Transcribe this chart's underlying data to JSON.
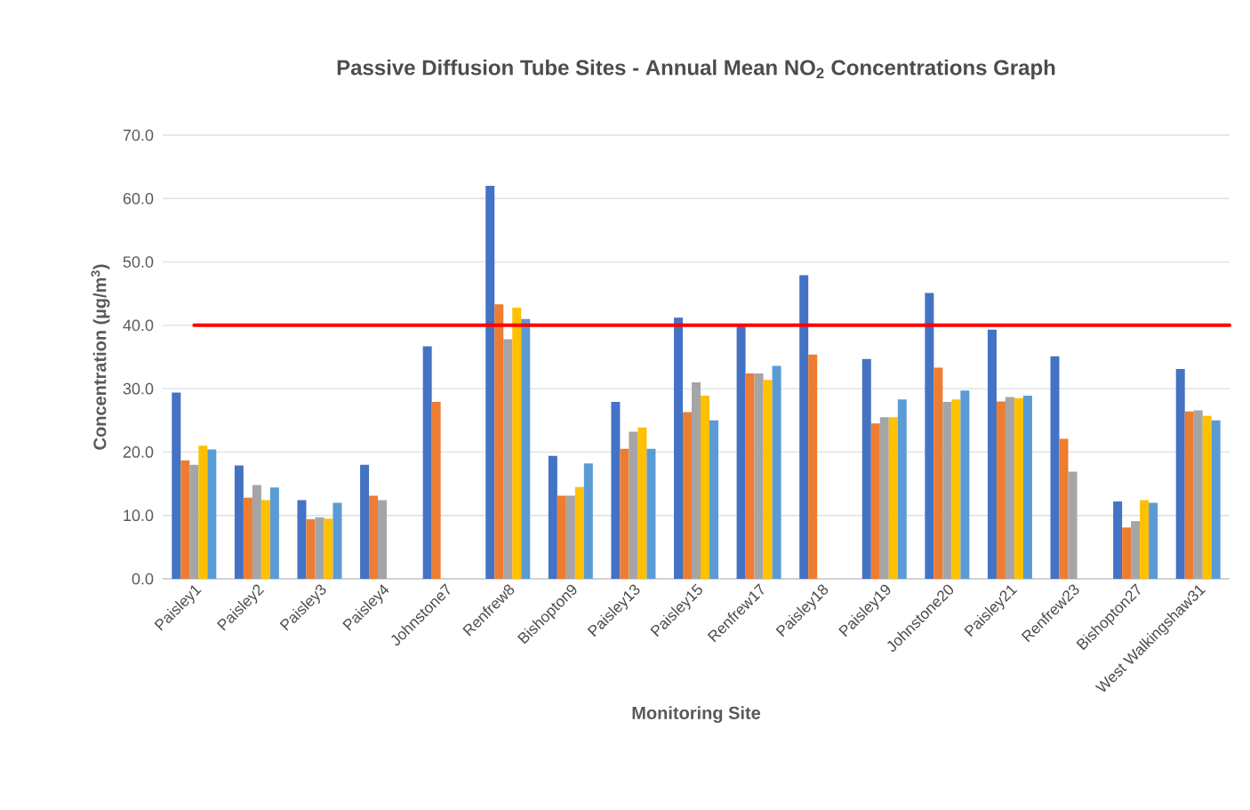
{
  "chart_data": {
    "type": "bar",
    "title": "Passive Diffusion Tube Sites - Annual Mean NO$_{2}$ Concentrations Graph",
    "xlabel": "Monitoring Site",
    "ylabel": "Concentration  (µg/m$^{3}$)",
    "categories": [
      "Paisley1",
      "Paisley2",
      "Paisley3",
      "Paisley4",
      "Johnstone7",
      "Renfrew8",
      "Bishopton9",
      "Paisley13",
      "Paisley15",
      "Renfrew17",
      "Paisley18",
      "Paisley19",
      "Johnstone20",
      "Paisley21",
      "Renfrew23",
      "Bishopton27",
      "West Walkingshaw31"
    ],
    "series": [
      {
        "color": "#4472c4",
        "values": [
          29.4,
          17.9,
          12.4,
          18.0,
          36.7,
          62.0,
          19.4,
          27.9,
          41.2,
          39.8,
          47.9,
          34.7,
          45.1,
          39.3,
          35.1,
          12.2,
          33.1
        ]
      },
      {
        "color": "#ed7d31",
        "values": [
          18.7,
          12.8,
          9.4,
          13.1,
          27.9,
          43.3,
          13.1,
          20.5,
          26.3,
          32.4,
          35.4,
          24.5,
          33.3,
          28.0,
          22.1,
          8.1,
          26.4
        ]
      },
      {
        "color": "#a5a5a5",
        "values": [
          18.0,
          14.8,
          9.7,
          12.4,
          null,
          37.8,
          13.1,
          23.2,
          31.0,
          32.4,
          null,
          25.5,
          27.9,
          28.7,
          16.9,
          9.1,
          26.6
        ]
      },
      {
        "color": "#ffc000",
        "values": [
          21.0,
          12.4,
          9.5,
          null,
          null,
          42.8,
          14.5,
          23.9,
          28.9,
          31.4,
          null,
          25.5,
          28.3,
          28.5,
          null,
          12.4,
          25.7
        ]
      },
      {
        "color": "#5b9bd5",
        "values": [
          20.4,
          14.4,
          12.0,
          null,
          null,
          41.0,
          18.2,
          20.5,
          25.0,
          33.6,
          null,
          28.3,
          29.7,
          28.9,
          null,
          12.0,
          25.0
        ]
      }
    ],
    "ylim": [
      0,
      70
    ],
    "yticks": [
      {
        "value": 0,
        "label": "0.0"
      },
      {
        "value": 10,
        "label": "10.0"
      },
      {
        "value": 20,
        "label": "20.0"
      },
      {
        "value": 30,
        "label": "30.0"
      },
      {
        "value": 40,
        "label": "40.0"
      },
      {
        "value": 50,
        "label": "50.0"
      },
      {
        "value": 60,
        "label": "60.0"
      },
      {
        "value": 70,
        "label": "70.0"
      }
    ],
    "grid": "y",
    "ref_lines": [
      {
        "axis": "y",
        "value": 40,
        "color": "#ff0000"
      }
    ]
  }
}
